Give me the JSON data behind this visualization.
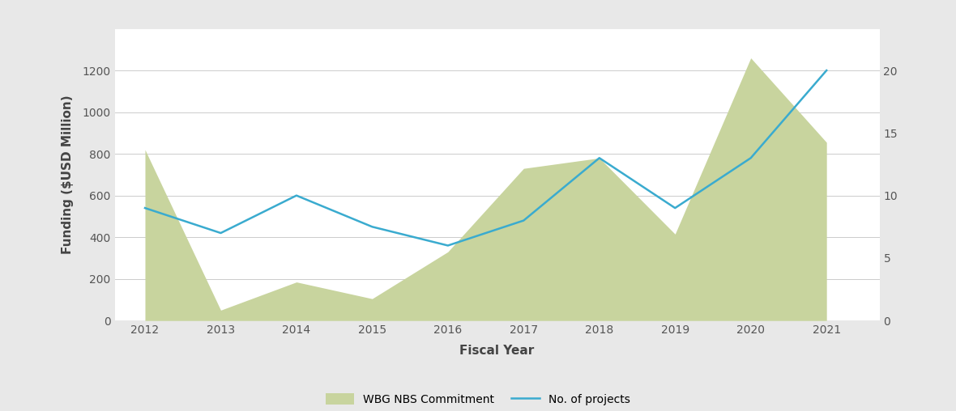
{
  "years": [
    2012,
    2013,
    2014,
    2015,
    2016,
    2017,
    2018,
    2019,
    2020,
    2021
  ],
  "commitment": [
    820,
    50,
    185,
    105,
    330,
    730,
    780,
    415,
    1260,
    855
  ],
  "num_projects": [
    9,
    7,
    10,
    7.5,
    6,
    8,
    13,
    9,
    13,
    20
  ],
  "area_color": "#c8d49e",
  "area_edge_color": "#c8d49e",
  "line_color": "#3aabcf",
  "line_width": 1.8,
  "ylabel_left": "Funding ($USD Million)",
  "xlabel": "Fiscal Year",
  "ylim_left": [
    0,
    1400
  ],
  "ylim_right": [
    0,
    23.33
  ],
  "yticks_left": [
    0,
    200,
    400,
    600,
    800,
    1000,
    1200
  ],
  "yticks_right": [
    0,
    5,
    10,
    15,
    20
  ],
  "background_color": "#e8e8e8",
  "plot_bg_color": "#ffffff",
  "grid_color": "#cccccc",
  "legend_label_area": "WBG NBS Commitment",
  "legend_label_line": "No. of projects",
  "axis_label_fontsize": 11,
  "tick_fontsize": 10,
  "legend_fontsize": 10
}
